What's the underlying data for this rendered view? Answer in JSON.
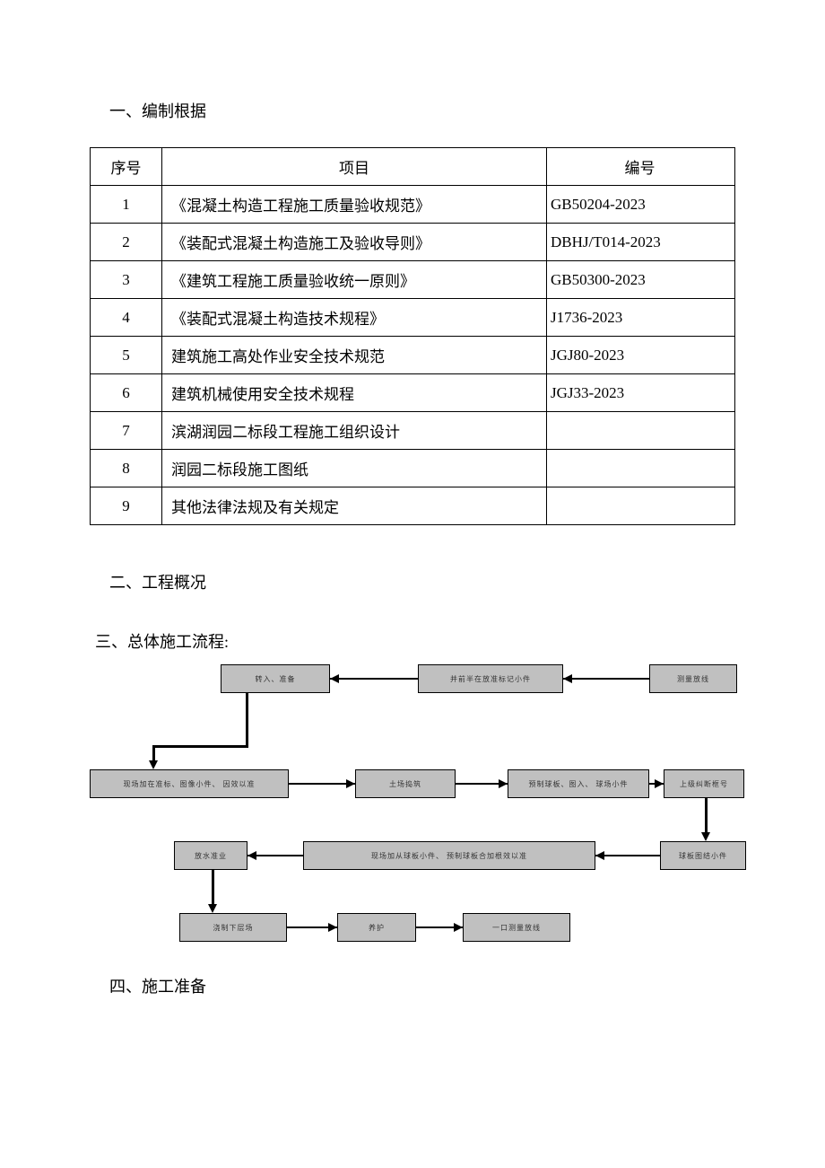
{
  "sections": {
    "s1": "一、编制根据",
    "s2": "二、工程概况",
    "s3": "三、总体施工流程:",
    "s4": "四、施工准备"
  },
  "table": {
    "headers": {
      "seq": "序号",
      "item": "项目",
      "code": "编号"
    },
    "rows": [
      {
        "seq": "1",
        "item": "《混凝土构造工程施工质量验收规范》",
        "code": "GB50204-2023"
      },
      {
        "seq": "2",
        "item": "《装配式混凝土构造施工及验收导则》",
        "code": "DBHJ/T014-2023"
      },
      {
        "seq": "3",
        "item": "《建筑工程施工质量验收统一原则》",
        "code": "GB50300-2023"
      },
      {
        "seq": "4",
        "item": "《装配式混凝土构造技术规程》",
        "code": "J1736-2023"
      },
      {
        "seq": "5",
        "item": "建筑施工高处作业安全技术规范",
        "code": "JGJ80-2023"
      },
      {
        "seq": "6",
        "item": "建筑机械使用安全技术规程",
        "code": "JGJ33-2023"
      },
      {
        "seq": "7",
        "item": "滨湖润园二标段工程施工组织设计",
        "code": ""
      },
      {
        "seq": "8",
        "item": "润园二标段施工图纸",
        "code": ""
      },
      {
        "seq": "9",
        "item": "其他法律法规及有关规定",
        "code": ""
      }
    ]
  },
  "flowchart": {
    "box_bg": "#c0c0c0",
    "box_border": "#000000",
    "nodes": {
      "r1a": "转入、准备",
      "r1b": "并前半在放准标记小件",
      "r1c": "测量放线",
      "r2a": "现场加在准标、图像小件、 因效以准",
      "r2b": "土场捣筑",
      "r2c": "预制球板、图入、 球场小件",
      "r2d": "上级纠断框号",
      "r3a": "放水准业",
      "r3b": "现场加从球板小件、 预制球板合加根效以准",
      "r3c": "球板图结小件",
      "r4a": "浇制下层场",
      "r4b": "养护",
      "r4c": "一口测量放线"
    }
  }
}
